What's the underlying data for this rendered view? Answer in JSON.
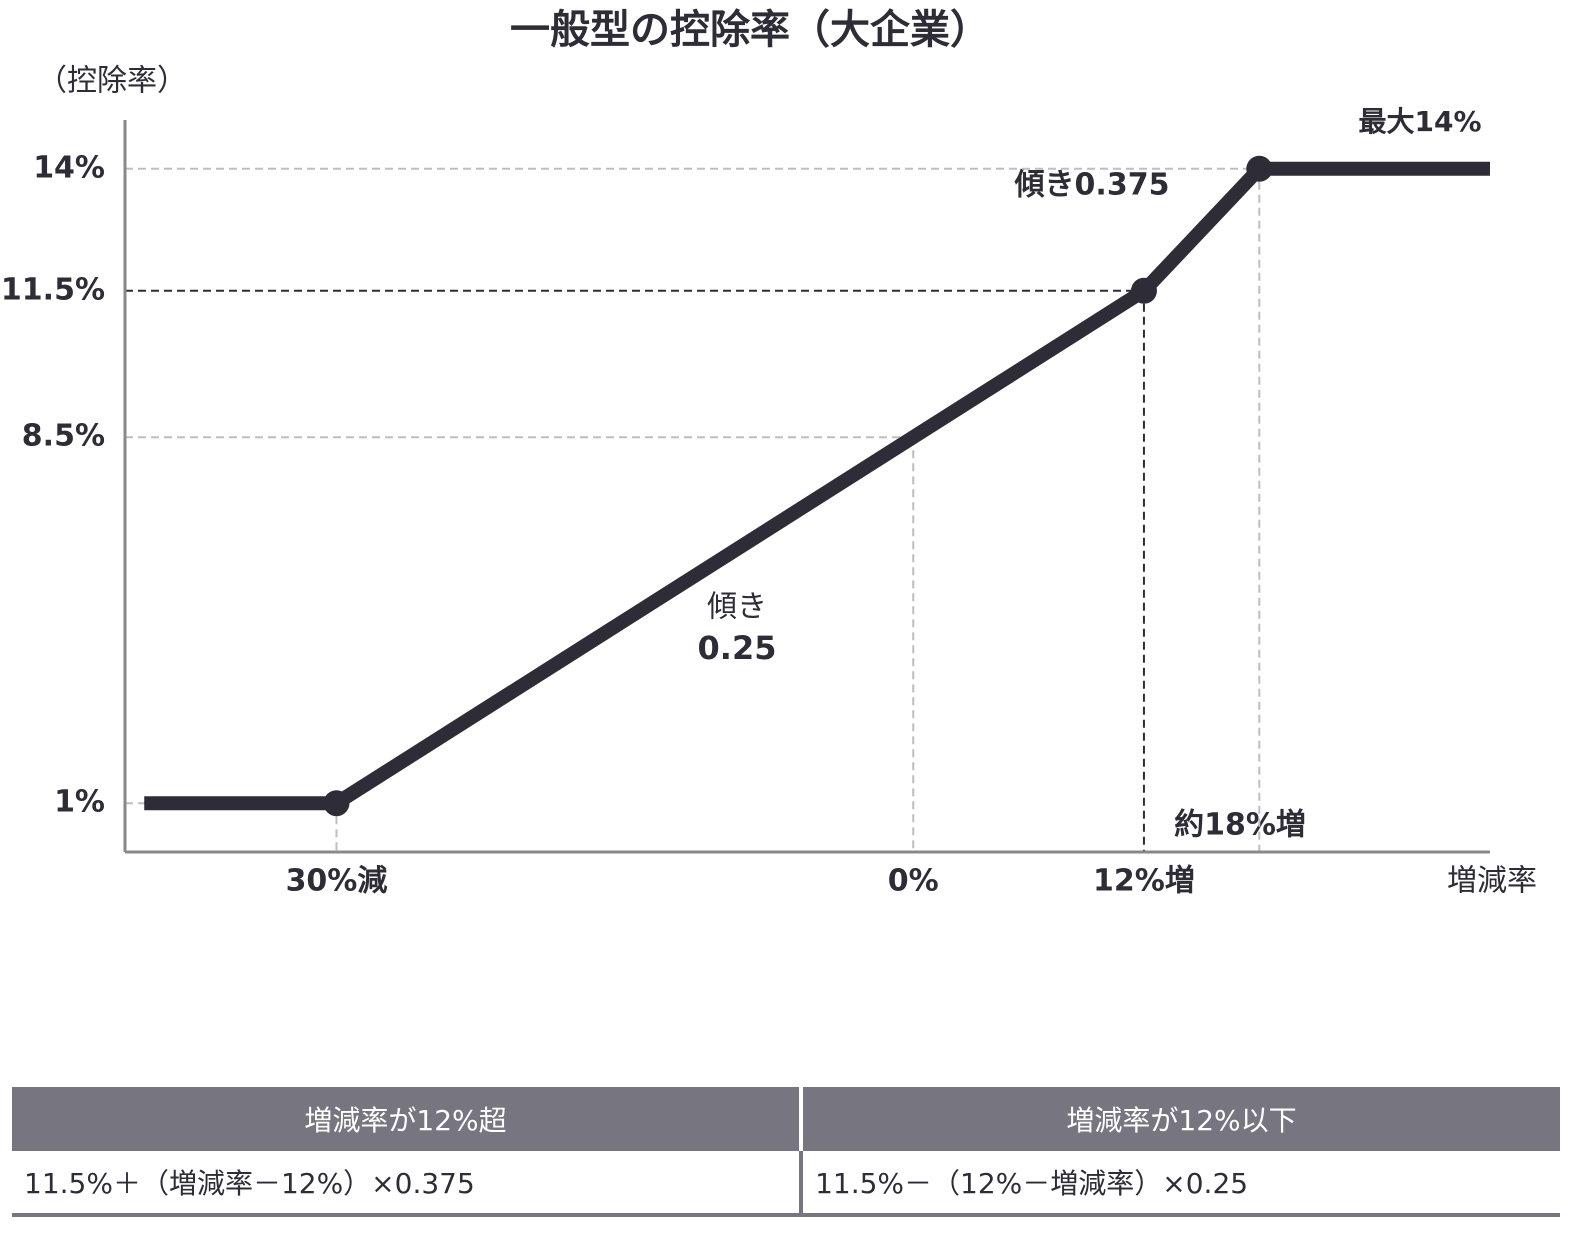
{
  "chart_data": {
    "type": "line",
    "title": "一般型の控除率（大企業）",
    "y_label": "（控除率）",
    "x_label": "増減率",
    "x": [
      -40,
      -30,
      0,
      12,
      18,
      30
    ],
    "series": [
      {
        "values": [
          1,
          1,
          8.5,
          11.5,
          14,
          14
        ],
        "color": "#2e2d37"
      }
    ],
    "xlim": [
      -41,
      30
    ],
    "ylim": [
      0,
      15
    ],
    "xticks": [
      {
        "value": -30,
        "label": "30%減"
      },
      {
        "value": 0,
        "label": "0%"
      },
      {
        "value": 12,
        "label": "12%増"
      }
    ],
    "yticks": [
      {
        "value": 1,
        "label": "1%"
      },
      {
        "value": 8.5,
        "label": "8.5%"
      },
      {
        "value": 11.5,
        "label": "11.5%"
      },
      {
        "value": 14,
        "label": "14%"
      }
    ],
    "annotations": [
      "傾き",
      "0.25",
      "傾き0.375",
      "最大14%",
      "約18%増"
    ]
  },
  "table": {
    "header": [
      "増減率が12%超",
      "増減率が12%以下"
    ],
    "rows": [
      [
        "11.5%＋（増減率－12%）×0.375",
        "11.5%－（12%－増減率）×0.25"
      ]
    ]
  }
}
